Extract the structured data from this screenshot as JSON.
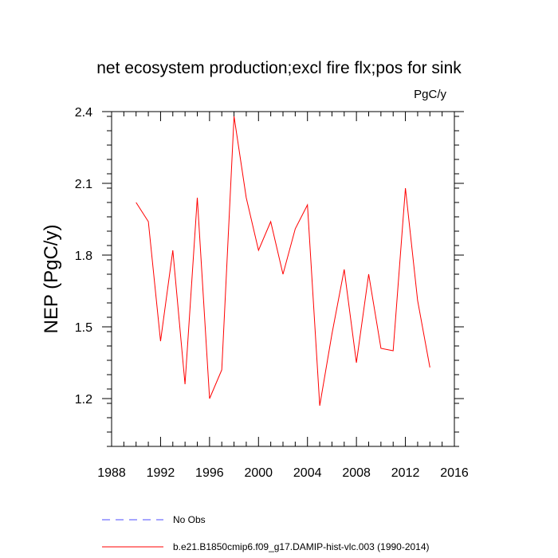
{
  "chart_data": {
    "type": "line",
    "title": "net ecosystem production;excl fire flx;pos for sink",
    "units_label": "PgC/y",
    "xlabel": "",
    "ylabel": "NEP  (PgC/y)",
    "xlim": [
      1988,
      2016
    ],
    "ylim": [
      1.0,
      2.4
    ],
    "x_ticks": [
      1988,
      1992,
      1996,
      2000,
      2004,
      2008,
      2012,
      2016
    ],
    "y_ticks": [
      1.2,
      1.5,
      1.8,
      2.1,
      2.4
    ],
    "y_tick_labels": [
      "1.2",
      "1.5",
      "1.8",
      "2.1",
      "2.4"
    ],
    "x_minor_step": 1,
    "y_minor_step": 0.06,
    "grid": false,
    "legend_placement": "bottom",
    "series": [
      {
        "name": "No Obs",
        "style": "dashed",
        "color": "#4d4dff",
        "x": [],
        "values": []
      },
      {
        "name": "b.e21.B1850cmip6.f09_g17.DAMIP-hist-vlc.003 (1990-2014)",
        "style": "solid",
        "color": "#ff0000",
        "x": [
          1990,
          1991,
          1992,
          1993,
          1994,
          1995,
          1996,
          1997,
          1998,
          1999,
          2000,
          2001,
          2002,
          2003,
          2004,
          2005,
          2006,
          2007,
          2008,
          2009,
          2010,
          2011,
          2012,
          2013,
          2014
        ],
        "values": [
          2.02,
          1.94,
          1.44,
          1.82,
          1.26,
          2.04,
          1.2,
          1.32,
          2.38,
          2.04,
          1.82,
          1.94,
          1.72,
          1.91,
          2.01,
          1.17,
          1.47,
          1.74,
          1.35,
          1.72,
          1.41,
          1.4,
          2.08,
          1.61,
          1.33
        ]
      }
    ]
  }
}
